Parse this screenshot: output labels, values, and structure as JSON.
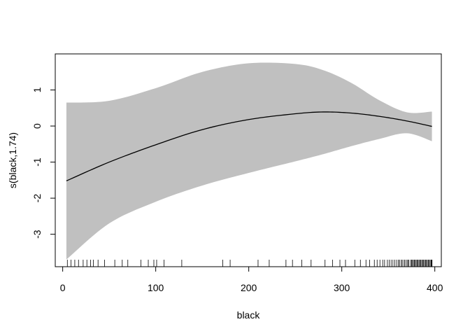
{
  "chart_data": {
    "type": "line",
    "title": "",
    "xlabel": "black",
    "ylabel": "s(black,1.74)",
    "xlim": [
      -8,
      407
    ],
    "ylim": [
      -3.9,
      2.0
    ],
    "xticks": [
      0,
      100,
      200,
      300,
      400
    ],
    "yticks": [
      -3,
      -2,
      -1,
      0,
      1
    ],
    "xtick_labels": [
      "0",
      "100",
      "200",
      "300",
      "400"
    ],
    "ytick_labels": [
      "-3",
      "-2",
      "-1",
      "0",
      "1"
    ],
    "grid": false,
    "colors": {
      "band": "#c0c0c0",
      "line": "#000000",
      "axis": "#000000"
    },
    "series": [
      {
        "name": "fit",
        "x": [
          4,
          50,
          100,
          150,
          200,
          250,
          280,
          310,
          340,
          370,
          396.9
        ],
        "values": [
          -1.52,
          -1.0,
          -0.52,
          -0.1,
          0.18,
          0.34,
          0.39,
          0.36,
          0.27,
          0.14,
          -0.01
        ]
      },
      {
        "name": "upper",
        "x": [
          4,
          50,
          100,
          150,
          200,
          250,
          280,
          310,
          340,
          370,
          396.9
        ],
        "values": [
          0.65,
          0.7,
          1.05,
          1.5,
          1.74,
          1.72,
          1.55,
          1.2,
          0.72,
          0.38,
          0.4
        ]
      },
      {
        "name": "lower",
        "x": [
          4,
          50,
          100,
          150,
          200,
          250,
          280,
          310,
          340,
          370,
          396.9
        ],
        "values": [
          -3.7,
          -2.7,
          -2.1,
          -1.65,
          -1.3,
          -0.98,
          -0.78,
          -0.56,
          -0.36,
          -0.2,
          -0.42
        ]
      }
    ],
    "rug": [
      5,
      9,
      13,
      17,
      22,
      26,
      30,
      33,
      38,
      45,
      56,
      64,
      70,
      84,
      92,
      98,
      101,
      109,
      128,
      172,
      180,
      210,
      222,
      240,
      247,
      257,
      267,
      282,
      290,
      298,
      304,
      314,
      320,
      326,
      330,
      335,
      338,
      341,
      344,
      346,
      349,
      351,
      353,
      355,
      357,
      359,
      361,
      362,
      364,
      365,
      367,
      368,
      370,
      371,
      372,
      374,
      375,
      376,
      377,
      378,
      379,
      380,
      381,
      382,
      383,
      384,
      385,
      386,
      387,
      388,
      389,
      390,
      391,
      392,
      393,
      394,
      395,
      396,
      396.5,
      397
    ]
  }
}
